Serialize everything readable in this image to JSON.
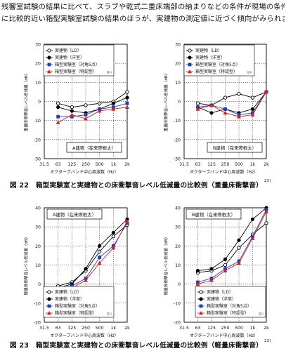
{
  "intro": {
    "line1": "残響室試験の結果に比べて、スラブや乾式二重床端部の納まりなどの条件が現場の条件",
    "line2": "に比較的近い箱型実験室試験の結果のほうが、実建物の測定値に近づく傾向がみられます。"
  },
  "fig22": {
    "caption": "図 22　箱型実験室と実建物との床衝撃音レベル低減量の比較例（重量床衝撃音）",
    "ref": "23)"
  },
  "fig23": {
    "caption": "図 23　箱型実験室と実建物との床衝撃音レベル低減量の比較例（軽量床衝撃音）",
    "ref": "23)"
  },
  "colors": {
    "ld": "#000000",
    "yo": "#000000",
    "box5": "#1f3fb8",
    "boxs": "#d42020",
    "grid": "#000000"
  },
  "chart_data": [
    {
      "type": "line",
      "title": "",
      "xlabel": "オクターブバンド中心周波数（Hz）",
      "ylabel": "重量床衝撃音レベル低減量（dB）",
      "categories": [
        "31.5",
        "63",
        "125",
        "250",
        "500",
        "1k",
        "2k"
      ],
      "yticks": [
        30,
        20,
        10,
        0,
        -10,
        -20,
        -30
      ],
      "ylim": [
        -30,
        30
      ],
      "grid": true,
      "legend_position": "top-left",
      "annotation": "A建物（在来際根太）",
      "series": [
        {
          "name": "実建物（LD）",
          "marker": "circle-open",
          "values": [
            null,
            -1,
            -3,
            -2,
            -1,
            0,
            5
          ]
        },
        {
          "name": "実建物（洋室）",
          "marker": "circle-filled",
          "values": [
            null,
            -3,
            -5,
            -6,
            -4,
            -1,
            2
          ]
        },
        {
          "name": "箱型実験室（対角5点）",
          "marker": "square",
          "values": [
            null,
            -8,
            -8,
            -7,
            -4,
            -3,
            -1
          ]
        },
        {
          "name": "箱型実験室（特認型）",
          "marker": "triangle",
          "values": [
            null,
            -11,
            -7,
            -9,
            -5,
            -4,
            -3
          ]
        }
      ],
      "legend_note": "注1)"
    },
    {
      "type": "line",
      "title": "",
      "xlabel": "オクターブバンド中心周波数（Hz）",
      "ylabel": "重量床衝撃音レベル低減量（dB）",
      "categories": [
        "31.5",
        "63",
        "125",
        "250",
        "500",
        "1k",
        "2k"
      ],
      "yticks": [
        30,
        20,
        10,
        0,
        -10,
        -20,
        -30
      ],
      "ylim": [
        -30,
        30
      ],
      "grid": true,
      "legend_position": "top-left",
      "annotation": "B建物（在来際根太）",
      "series": [
        {
          "name": "実建物（LD）",
          "marker": "circle-open",
          "values": [
            null,
            -1,
            -2,
            2,
            4,
            2,
            5
          ]
        },
        {
          "name": "実建物（洋室）",
          "marker": "circle-filled",
          "values": [
            null,
            -3,
            -6,
            -4,
            -6,
            -4,
            5
          ]
        },
        {
          "name": "箱型実験室（対角5点）",
          "marker": "square",
          "values": [
            null,
            -3,
            -2,
            -4,
            -7,
            -6,
            5
          ]
        },
        {
          "name": "箱型実験室（特認型）",
          "marker": "triangle",
          "values": [
            null,
            -4,
            -2,
            -6,
            -8,
            -7,
            5
          ]
        }
      ],
      "legend_note": "注1)"
    },
    {
      "type": "line",
      "title": "",
      "xlabel": "オクターブバンド中心周波数（Hz）",
      "ylabel": "軽量床衝撃音レベル低減量（dB）",
      "categories": [
        "31.5",
        "63",
        "125",
        "250",
        "500",
        "1k",
        "2k"
      ],
      "yticks": [
        40,
        30,
        20,
        10,
        0,
        -10,
        -20
      ],
      "ylim": [
        -20,
        40
      ],
      "grid": true,
      "legend_position": "bottom-left",
      "annotation": "A建物（在来際根太）",
      "series": [
        {
          "name": "実建物（LD）",
          "marker": "circle-open",
          "values": [
            null,
            -1,
            1,
            7,
            17,
            25,
            31
          ]
        },
        {
          "name": "実建物（洋室）",
          "marker": "circle-filled",
          "values": [
            null,
            -2,
            0,
            8,
            20,
            27,
            34
          ]
        },
        {
          "name": "箱型実験室（対角5点）",
          "marker": "square",
          "values": [
            null,
            -2,
            -1,
            3,
            14,
            20,
            32
          ]
        },
        {
          "name": "箱型実験室（特認型）",
          "marker": "triangle",
          "values": [
            null,
            -3,
            -2,
            2,
            11,
            19,
            33
          ]
        }
      ],
      "legend_note": "注1)"
    },
    {
      "type": "line",
      "title": "",
      "xlabel": "オクターブバンド中心周波数（Hz）",
      "ylabel": "軽量床衝撃音レベル低減量（dB）",
      "categories": [
        "31.5",
        "63",
        "125",
        "250",
        "500",
        "1k",
        "2k"
      ],
      "yticks": [
        40,
        30,
        20,
        10,
        0,
        -10,
        -20
      ],
      "ylim": [
        -20,
        40
      ],
      "grid": true,
      "legend_position": "bottom-right",
      "annotation": "B建物（在来際根太）",
      "series": [
        {
          "name": "実建物（LD）",
          "marker": "circle-open",
          "values": [
            null,
            6,
            7,
            10,
            19,
            26,
            32
          ]
        },
        {
          "name": "実建物（洋室）",
          "marker": "circle-filled",
          "values": [
            null,
            7,
            8,
            13,
            23,
            34,
            40
          ]
        },
        {
          "name": "箱型実験室（対角5点）",
          "marker": "square",
          "values": [
            null,
            1,
            3,
            8,
            12,
            25,
            39
          ]
        },
        {
          "name": "箱型実験室（特認型）",
          "marker": "triangle",
          "values": [
            null,
            0,
            2,
            7,
            11,
            24,
            38
          ]
        }
      ],
      "legend_note": "注1)"
    }
  ]
}
